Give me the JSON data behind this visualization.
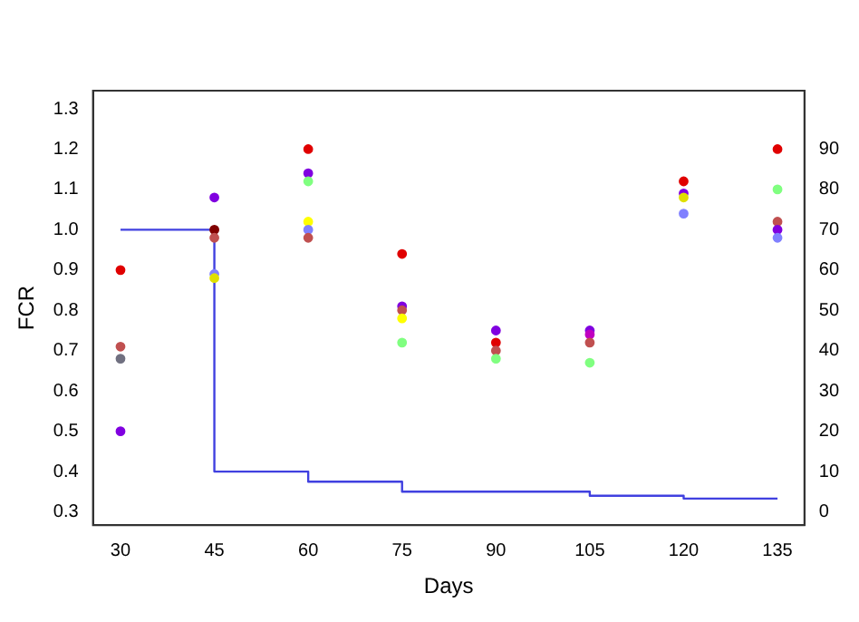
{
  "chart_data": {
    "type": "scatter",
    "xlabel": "Days",
    "ylabel": "FCR",
    "xlim": [
      25.6,
      139.3
    ],
    "xticks": [
      30,
      45,
      60,
      75,
      90,
      105,
      120,
      135
    ],
    "ylim": [
      0.267,
      1.345
    ],
    "yticks": [
      0.3,
      0.4,
      0.5,
      0.6,
      0.7,
      0.8,
      0.9,
      {
        "value": 1,
        "label": "1.0"
      },
      1.1,
      1.2,
      1.3
    ],
    "y2lim": [
      -3.3,
      104.5
    ],
    "y2ticks": [
      0,
      10,
      20,
      30,
      40,
      50,
      60,
      70,
      80,
      90
    ],
    "grid": false,
    "legend": false,
    "marker": "circle",
    "series": [
      {
        "x": [
          30,
          30,
          30,
          30,
          45,
          45,
          45,
          45,
          45,
          60,
          60,
          60,
          60,
          60,
          60,
          75,
          75,
          75,
          75,
          75,
          90,
          90,
          90,
          90,
          105,
          105,
          105,
          105,
          120,
          120,
          120,
          120,
          135,
          135,
          135,
          135,
          135
        ],
        "values": [
          0.9,
          0.71,
          0.68,
          0.5,
          1.08,
          1.0,
          0.98,
          0.89,
          0.88,
          1.2,
          1.14,
          1.12,
          1.02,
          1.0,
          0.98,
          0.94,
          0.81,
          0.8,
          0.78,
          0.72,
          0.75,
          0.72,
          0.7,
          0.68,
          0.75,
          0.74,
          0.72,
          0.67,
          1.12,
          1.09,
          1.08,
          1.04,
          1.2,
          1.1,
          1.02,
          1.0,
          0.98
        ],
        "colors": [
          "#e00000",
          "#c05050",
          "#707080",
          "#8000e0",
          "#8000e0",
          "#800000",
          "#c05050",
          "#8080ff",
          "#e0e000",
          "#e00000",
          "#8000e0",
          "#80ff80",
          "#ffff00",
          "#8080ff",
          "#c05050",
          "#e00000",
          "#8000e0",
          "#c05050",
          "#ffff00",
          "#80ff80",
          "#8000e0",
          "#e00000",
          "#c05050",
          "#80ff80",
          "#8000e0",
          "#c000c0",
          "#c05050",
          "#80ff80",
          "#e00000",
          "#8000e0",
          "#e0e000",
          "#8080ff",
          "#e00000",
          "#80ff80",
          "#c05050",
          "#8000e0",
          "#8080ff"
        ]
      },
      {
        "type": "step",
        "marker": "none",
        "axis": "y2",
        "color": "#4040e0",
        "x": [
          30,
          45,
          60,
          75,
          90,
          105,
          120,
          135
        ],
        "values": [
          70,
          10,
          7.5,
          5,
          5,
          4,
          3.3,
          3.3
        ]
      }
    ]
  }
}
